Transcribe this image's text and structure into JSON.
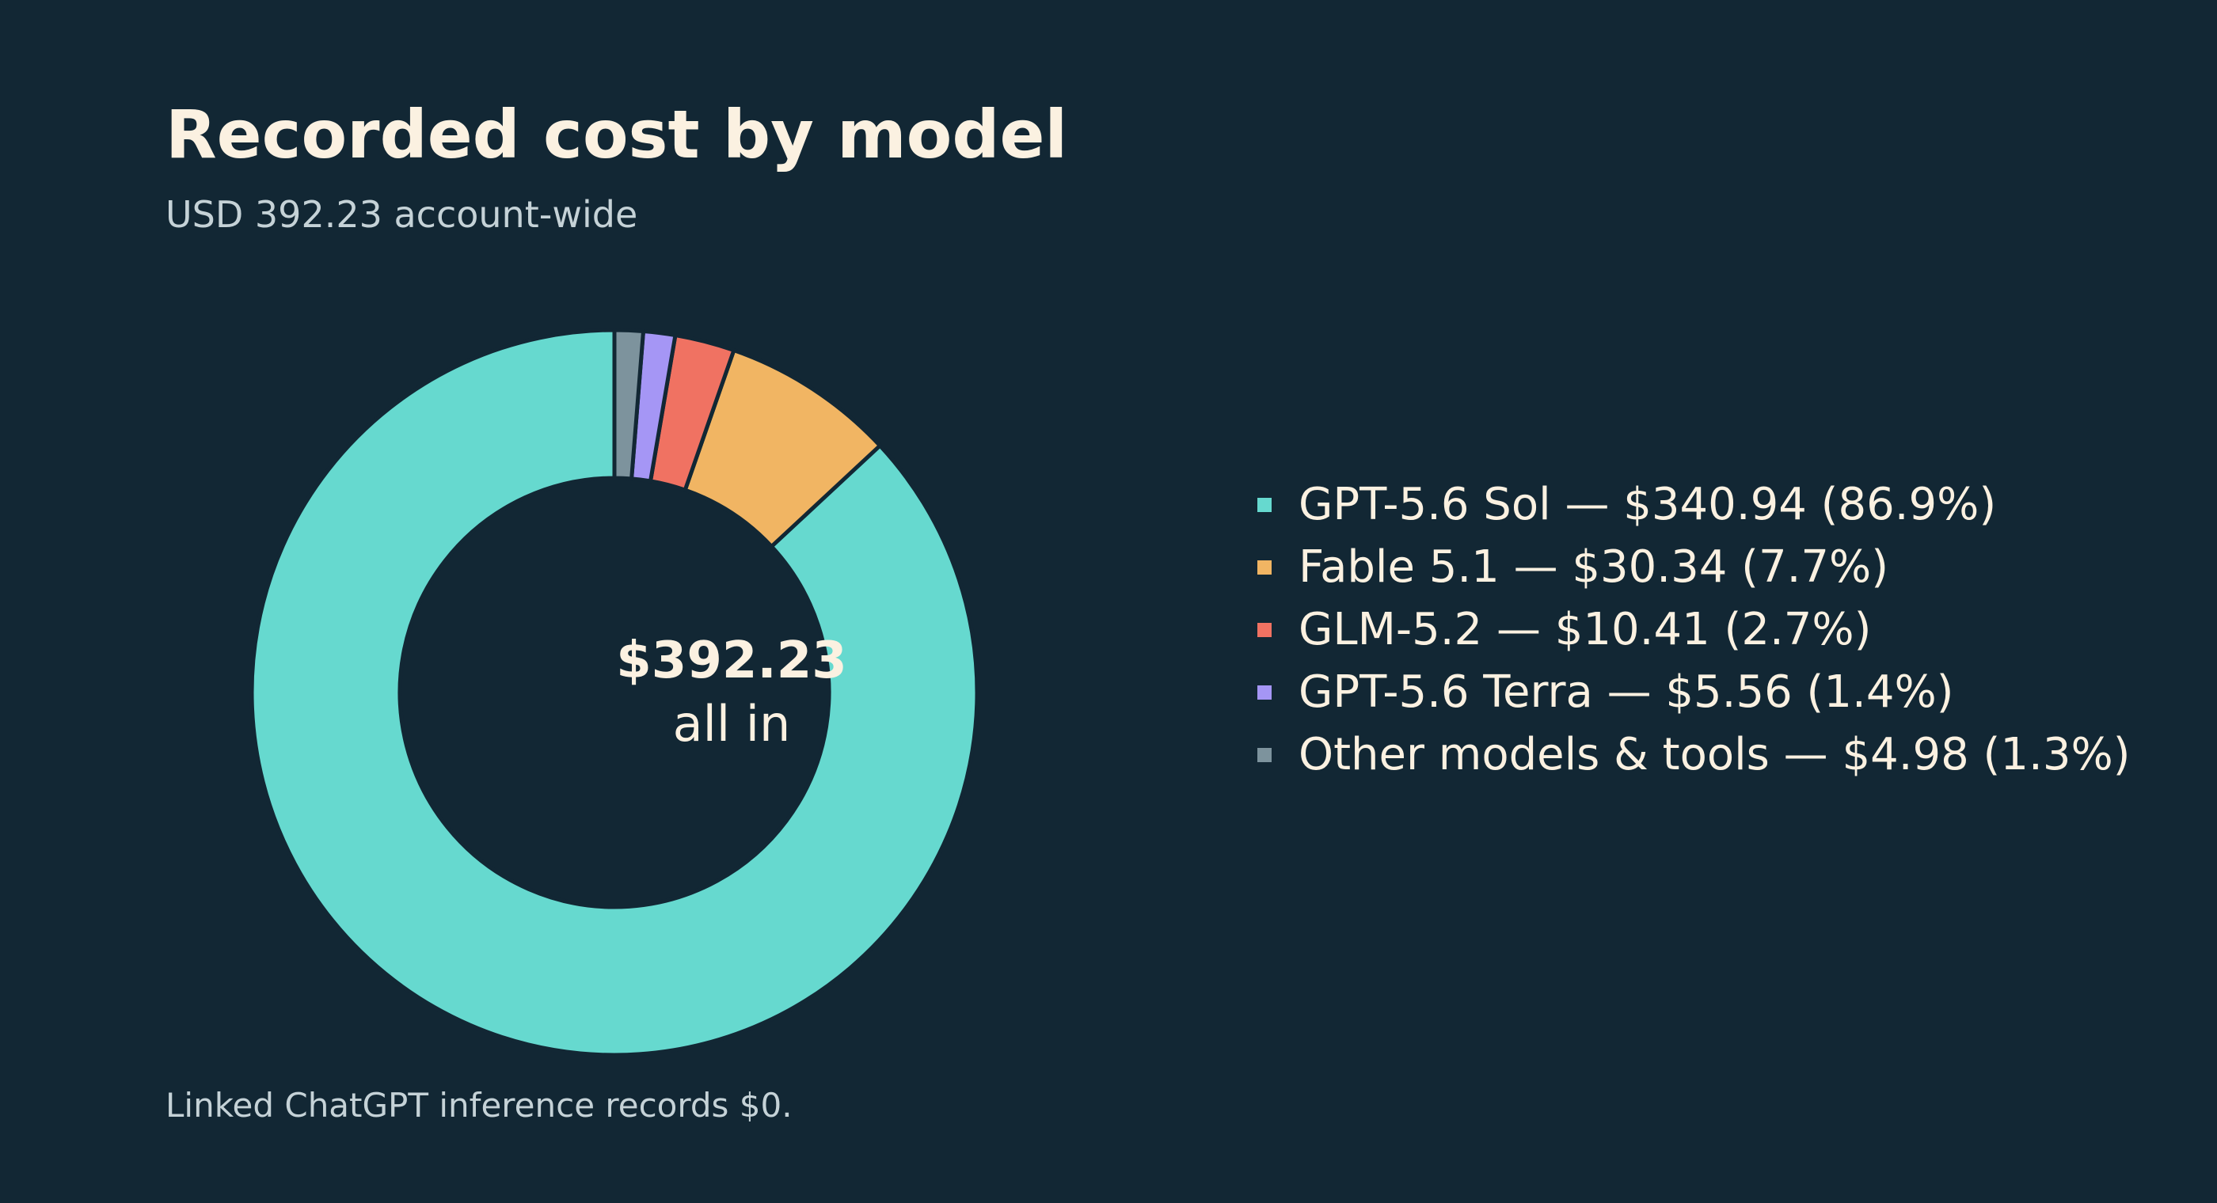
{
  "chart_data": {
    "type": "pie",
    "title": "Recorded cost by model",
    "subtitle": "USD 392.23 account-wide",
    "center_value": "$392.23",
    "center_label": "all in",
    "footnote": "Linked ChatGPT inference records $0.",
    "slices": [
      {
        "name": "GPT-5.6 Sol",
        "value": 340.94,
        "legend": "GPT-5.6 Sol — $340.94 (86.9%)",
        "color": "#66d9cf"
      },
      {
        "name": "Fable 5.1",
        "value": 30.34,
        "legend": "Fable 5.1 — $30.34 (7.7%)",
        "color": "#f1b563"
      },
      {
        "name": "GLM-5.2",
        "value": 10.41,
        "legend": "GLM-5.2 — $10.41 (2.7%)",
        "color": "#f07262"
      },
      {
        "name": "GPT-5.6 Terra",
        "value": 5.56,
        "legend": "GPT-5.6 Terra — $5.56 (1.4%)",
        "color": "#a596f5"
      },
      {
        "name": "Other models & tools",
        "value": 4.98,
        "legend": "Other models & tools — $4.98 (1.3%)",
        "color": "#7d939d"
      }
    ],
    "style": {
      "background": "#122734",
      "separator": "#122734",
      "text": "#fbf1e1"
    },
    "legend_placement": "right"
  }
}
